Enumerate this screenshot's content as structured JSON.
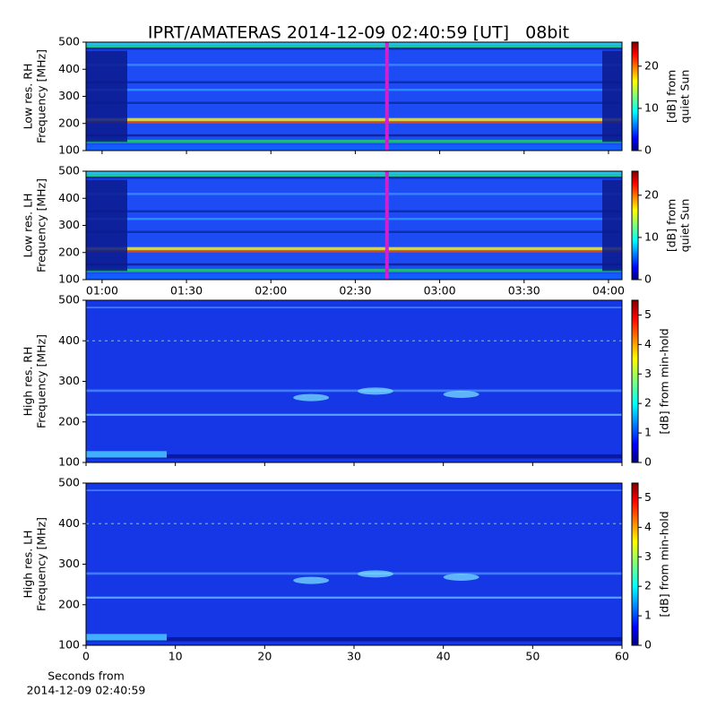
{
  "chart_data": [
    {
      "type": "heatmap",
      "title": "IPRT/AMATERAS 2014-12-09 02:40:59 [UT]   08bit",
      "ylabel": [
        "Low res. RH",
        "Frequency [MHz]"
      ],
      "xlim": [
        54.3,
        244.8
      ],
      "ylim": [
        100,
        500
      ],
      "yticks": [
        100,
        200,
        300,
        400,
        500
      ],
      "colorbar": {
        "label": [
          "[dB] from",
          "quiet Sun"
        ],
        "lim": [
          0,
          25.7
        ],
        "ticks": [
          0,
          10,
          20
        ],
        "colormap": "jet"
      }
    },
    {
      "type": "heatmap",
      "ylabel": [
        "Low res. LH",
        "Frequency [MHz]"
      ],
      "xlim": [
        54.3,
        244.8
      ],
      "xticks": [
        {
          "value": 60,
          "label": "01:00"
        },
        {
          "value": 90,
          "label": "01:30"
        },
        {
          "value": 120,
          "label": "02:00"
        },
        {
          "value": 150,
          "label": "02:30"
        },
        {
          "value": 180,
          "label": "03:00"
        },
        {
          "value": 210,
          "label": "03:30"
        },
        {
          "value": 240,
          "label": "04:00"
        }
      ],
      "ylim": [
        100,
        500
      ],
      "yticks": [
        100,
        200,
        300,
        400,
        500
      ],
      "colorbar": {
        "label": [
          "[dB] from",
          "quiet Sun"
        ],
        "lim": [
          0,
          25.7
        ],
        "ticks": [
          0,
          10,
          20
        ],
        "colormap": "jet"
      }
    },
    {
      "type": "heatmap",
      "ylabel": [
        "High res. RH",
        "Frequency [MHz]"
      ],
      "xlim": [
        0,
        60
      ],
      "ylim": [
        100,
        500
      ],
      "yticks": [
        100,
        200,
        300,
        400,
        500
      ],
      "colorbar": {
        "label": [
          "[dB] from min-hold"
        ],
        "lim": [
          0,
          5.5
        ],
        "ticks": [
          0,
          1,
          2,
          3,
          4,
          5
        ],
        "colormap": "jet"
      }
    },
    {
      "type": "heatmap",
      "ylabel": [
        "High res. LH",
        "Frequency [MHz]"
      ],
      "xlabel": [
        "Seconds from",
        "2014-12-09 02:40:59"
      ],
      "xlim": [
        0,
        60
      ],
      "xticks": [
        0,
        10,
        20,
        30,
        40,
        50,
        60
      ],
      "ylim": [
        100,
        500
      ],
      "yticks": [
        100,
        200,
        300,
        400,
        500
      ],
      "colorbar": {
        "label": [
          "[dB] from min-hold"
        ],
        "lim": [
          0,
          5.5
        ],
        "ticks": [
          0,
          1,
          2,
          3,
          4,
          5
        ],
        "colormap": "jet"
      }
    }
  ]
}
